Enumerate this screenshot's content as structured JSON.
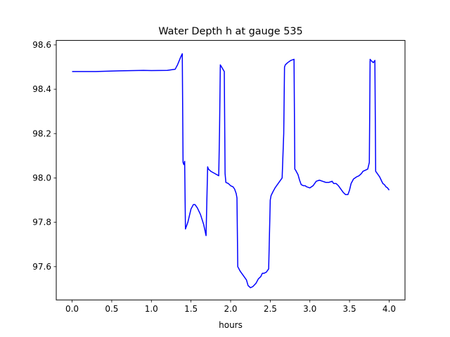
{
  "chart_data": {
    "type": "line",
    "title": "Water Depth h at gauge 535",
    "xlabel": "hours",
    "ylabel": "",
    "xlim": [
      -0.2,
      4.2
    ],
    "ylim": [
      97.45,
      98.62
    ],
    "xticks": [
      0.0,
      0.5,
      1.0,
      1.5,
      2.0,
      2.5,
      3.0,
      3.5,
      4.0
    ],
    "xtick_labels": [
      "0.0",
      "0.5",
      "1.0",
      "1.5",
      "2.0",
      "2.5",
      "3.0",
      "3.5",
      "4.0"
    ],
    "yticks": [
      97.6,
      97.8,
      98.0,
      98.2,
      98.4,
      98.6
    ],
    "ytick_labels": [
      "97.6",
      "97.8",
      "98.0",
      "98.2",
      "98.4",
      "98.6"
    ],
    "grid": false,
    "series": [
      {
        "color": "#0000ff",
        "x": [
          0.0,
          0.3,
          0.6,
          0.9,
          1.0,
          1.2,
          1.3,
          1.33,
          1.37,
          1.39,
          1.4,
          1.41,
          1.42,
          1.43,
          1.46,
          1.5,
          1.53,
          1.55,
          1.58,
          1.62,
          1.66,
          1.69,
          1.71,
          1.72,
          1.75,
          1.8,
          1.85,
          1.86,
          1.87,
          1.92,
          1.93,
          1.94,
          1.97,
          2.0,
          2.03,
          2.05,
          2.07,
          2.08,
          2.09,
          2.12,
          2.16,
          2.2,
          2.22,
          2.25,
          2.28,
          2.32,
          2.35,
          2.38,
          2.4,
          2.42,
          2.45,
          2.48,
          2.5,
          2.51,
          2.53,
          2.56,
          2.6,
          2.65,
          2.67,
          2.68,
          2.69,
          2.72,
          2.76,
          2.8,
          2.81,
          2.82,
          2.85,
          2.87,
          2.89,
          2.92,
          2.94,
          2.96,
          3.0,
          3.04,
          3.08,
          3.12,
          3.16,
          3.2,
          3.24,
          3.28,
          3.3,
          3.33,
          3.36,
          3.38,
          3.4,
          3.42,
          3.45,
          3.48,
          3.5,
          3.52,
          3.55,
          3.59,
          3.62,
          3.65,
          3.67,
          3.7,
          3.73,
          3.75,
          3.76,
          3.77,
          3.8,
          3.82,
          3.83,
          3.84,
          3.86,
          3.88,
          3.9,
          3.92,
          3.94,
          3.95,
          3.96,
          3.98,
          4.0
        ],
        "y": [
          98.48,
          98.48,
          98.483,
          98.485,
          98.484,
          98.485,
          98.49,
          98.51,
          98.545,
          98.56,
          98.07,
          98.06,
          98.075,
          97.77,
          97.8,
          97.86,
          97.88,
          97.88,
          97.865,
          97.835,
          97.79,
          97.74,
          98.05,
          98.04,
          98.03,
          98.02,
          98.01,
          98.21,
          98.51,
          98.48,
          98.02,
          97.98,
          97.975,
          97.965,
          97.96,
          97.95,
          97.93,
          97.91,
          97.6,
          97.58,
          97.56,
          97.54,
          97.515,
          97.505,
          97.51,
          97.525,
          97.545,
          97.555,
          97.57,
          97.57,
          97.575,
          97.59,
          97.9,
          97.92,
          97.935,
          97.955,
          97.975,
          98.0,
          98.2,
          98.5,
          98.51,
          98.52,
          98.53,
          98.535,
          98.04,
          98.035,
          98.015,
          97.99,
          97.97,
          97.965,
          97.965,
          97.96,
          97.955,
          97.965,
          97.985,
          97.99,
          97.985,
          97.98,
          97.98,
          97.985,
          97.975,
          97.975,
          97.965,
          97.955,
          97.945,
          97.935,
          97.925,
          97.925,
          97.945,
          97.975,
          97.995,
          98.005,
          98.01,
          98.02,
          98.03,
          98.035,
          98.04,
          98.07,
          98.535,
          98.53,
          98.52,
          98.53,
          98.03,
          98.025,
          98.015,
          98.005,
          97.99,
          97.975,
          97.97,
          97.965,
          97.96,
          97.955,
          97.945
        ]
      }
    ]
  }
}
